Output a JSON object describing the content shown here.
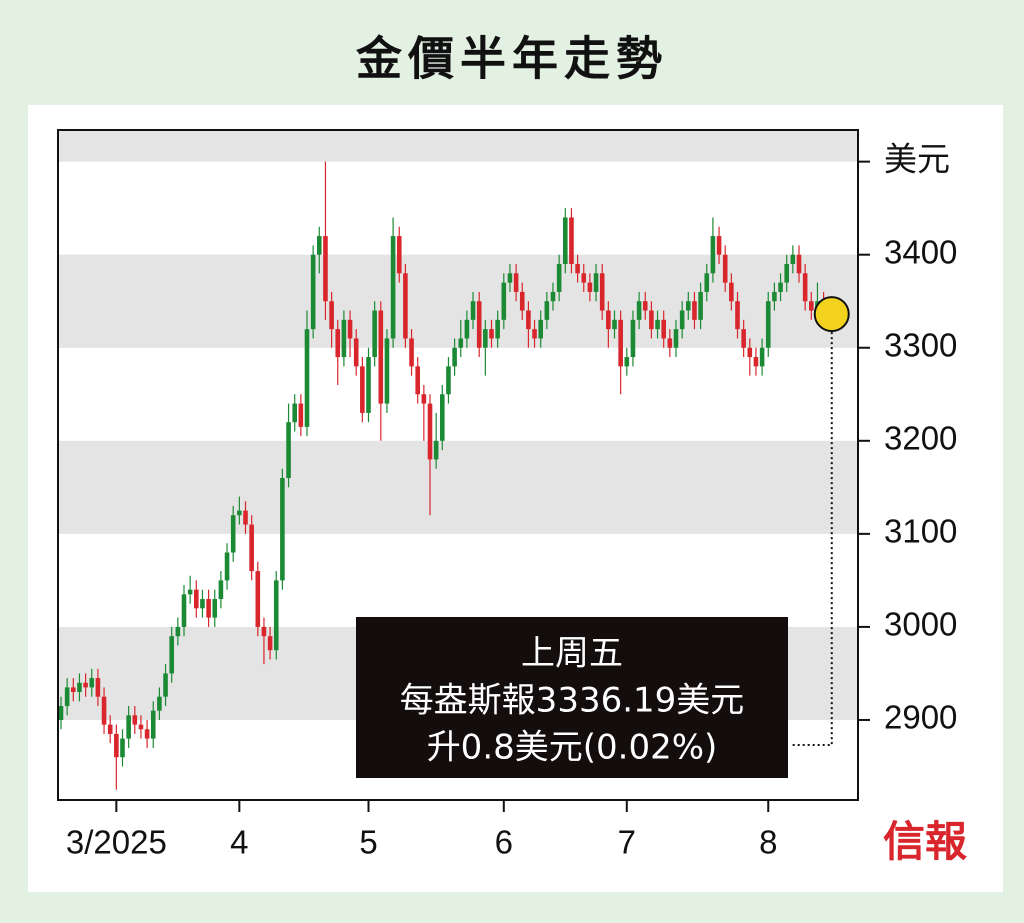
{
  "chart_data": {
    "type": "candlestick",
    "title": "金價半年走勢",
    "logo": "信報",
    "annotation": [
      "上周五",
      "每盎斯報3336.19美元",
      "升0.8美元(0.02%)"
    ],
    "up_color": "#1c8a34",
    "down_color": "#d8262c",
    "ylim": [
      2814,
      3534
    ],
    "yticks": [
      2900,
      3000,
      3100,
      3200,
      3300,
      3400,
      {
        "value": 3500,
        "label": "美元"
      }
    ],
    "grid": true,
    "categories": [
      null,
      null,
      null,
      null,
      null,
      null,
      null,
      null,
      null,
      "3/2025",
      null,
      null,
      null,
      null,
      null,
      null,
      null,
      null,
      null,
      null,
      null,
      null,
      null,
      null,
      null,
      null,
      null,
      null,
      null,
      "4",
      null,
      null,
      null,
      null,
      null,
      null,
      null,
      null,
      null,
      null,
      null,
      null,
      null,
      null,
      null,
      null,
      null,
      null,
      null,
      null,
      "5",
      null,
      null,
      null,
      null,
      null,
      null,
      null,
      null,
      null,
      null,
      null,
      null,
      null,
      null,
      null,
      null,
      null,
      null,
      null,
      null,
      null,
      "6",
      null,
      null,
      null,
      null,
      null,
      null,
      null,
      null,
      null,
      null,
      null,
      null,
      null,
      null,
      null,
      null,
      null,
      null,
      null,
      "7",
      null,
      null,
      null,
      null,
      null,
      null,
      null,
      null,
      null,
      null,
      null,
      null,
      null,
      null,
      null,
      null,
      null,
      null,
      null,
      null,
      null,
      null,
      "8",
      null,
      null,
      null,
      null,
      null,
      null,
      null,
      null,
      null,
      null
    ],
    "open": [
      2900,
      2915,
      2935,
      2930,
      2940,
      2935,
      2945,
      2925,
      2895,
      2885,
      2860,
      2880,
      2905,
      2895,
      2890,
      2880,
      2910,
      2925,
      2950,
      2990,
      3000,
      3035,
      3040,
      3020,
      3030,
      3010,
      3030,
      3050,
      3080,
      3120,
      3125,
      3110,
      3060,
      3000,
      2990,
      2975,
      3050,
      3160,
      3220,
      3240,
      3215,
      3320,
      3400,
      3420,
      3350,
      3320,
      3290,
      3330,
      3310,
      3280,
      3230,
      3290,
      3340,
      3240,
      3310,
      3420,
      3380,
      3310,
      3280,
      3250,
      3240,
      3180,
      3200,
      3250,
      3280,
      3300,
      3310,
      3330,
      3350,
      3300,
      3320,
      3310,
      3330,
      3370,
      3380,
      3360,
      3340,
      3320,
      3310,
      3330,
      3350,
      3360,
      3390,
      3440,
      3390,
      3380,
      3370,
      3360,
      3380,
      3340,
      3320,
      3330,
      3280,
      3290,
      3330,
      3350,
      3340,
      3320,
      3330,
      3310,
      3300,
      3320,
      3340,
      3350,
      3330,
      3360,
      3380,
      3420,
      3400,
      3370,
      3350,
      3320,
      3300,
      3290,
      3280,
      3300,
      3350,
      3360,
      3370,
      3390,
      3400,
      3380,
      3350,
      3340,
      3350,
      3340
    ],
    "high": [
      2925,
      2945,
      2945,
      2950,
      2950,
      2955,
      2955,
      2935,
      2905,
      2895,
      2890,
      2915,
      2915,
      2905,
      2900,
      2920,
      2935,
      2960,
      3000,
      3010,
      3045,
      3055,
      3050,
      3040,
      3040,
      3040,
      3060,
      3090,
      3130,
      3140,
      3135,
      3120,
      3070,
      3010,
      3000,
      3060,
      3170,
      3240,
      3250,
      3250,
      3340,
      3410,
      3430,
      3500,
      3360,
      3330,
      3340,
      3340,
      3320,
      3290,
      3300,
      3350,
      3350,
      3320,
      3440,
      3430,
      3390,
      3320,
      3290,
      3260,
      3250,
      3230,
      3260,
      3290,
      3310,
      3330,
      3340,
      3360,
      3360,
      3330,
      3330,
      3340,
      3380,
      3390,
      3390,
      3370,
      3350,
      3330,
      3340,
      3360,
      3370,
      3400,
      3450,
      3450,
      3400,
      3390,
      3380,
      3390,
      3390,
      3350,
      3340,
      3340,
      3300,
      3340,
      3360,
      3360,
      3350,
      3340,
      3340,
      3320,
      3330,
      3350,
      3360,
      3360,
      3370,
      3390,
      3440,
      3430,
      3410,
      3380,
      3360,
      3330,
      3310,
      3300,
      3310,
      3360,
      3370,
      3380,
      3400,
      3410,
      3410,
      3390,
      3360,
      3370,
      3360,
      3350
    ],
    "low": [
      2890,
      2905,
      2920,
      2920,
      2925,
      2925,
      2915,
      2885,
      2875,
      2825,
      2850,
      2870,
      2885,
      2880,
      2870,
      2870,
      2900,
      2915,
      2940,
      2980,
      2990,
      3025,
      3010,
      3010,
      3000,
      3000,
      3020,
      3040,
      3070,
      3110,
      3100,
      3050,
      2990,
      2960,
      2965,
      2965,
      3040,
      3150,
      3210,
      3205,
      3205,
      3310,
      3380,
      3330,
      3300,
      3260,
      3280,
      3290,
      3270,
      3220,
      3220,
      3280,
      3200,
      3230,
      3300,
      3370,
      3300,
      3270,
      3240,
      3200,
      3120,
      3170,
      3190,
      3240,
      3270,
      3290,
      3300,
      3320,
      3290,
      3270,
      3300,
      3300,
      3320,
      3360,
      3350,
      3330,
      3300,
      3300,
      3300,
      3320,
      3340,
      3350,
      3380,
      3380,
      3370,
      3360,
      3350,
      3350,
      3330,
      3300,
      3310,
      3250,
      3270,
      3280,
      3320,
      3330,
      3310,
      3310,
      3300,
      3290,
      3290,
      3310,
      3330,
      3320,
      3320,
      3350,
      3370,
      3390,
      3360,
      3340,
      3310,
      3290,
      3270,
      3270,
      3270,
      3290,
      3340,
      3350,
      3360,
      3380,
      3370,
      3340,
      3330,
      3330,
      3330,
      3325
    ],
    "close": [
      2915,
      2935,
      2930,
      2940,
      2935,
      2945,
      2925,
      2895,
      2885,
      2860,
      2880,
      2905,
      2895,
      2890,
      2880,
      2910,
      2925,
      2950,
      2990,
      3000,
      3035,
      3040,
      3020,
      3030,
      3010,
      3030,
      3050,
      3080,
      3120,
      3125,
      3110,
      3060,
      3000,
      2990,
      2975,
      3050,
      3160,
      3220,
      3240,
      3215,
      3320,
      3400,
      3420,
      3350,
      3320,
      3290,
      3330,
      3310,
      3280,
      3230,
      3290,
      3340,
      3240,
      3310,
      3420,
      3380,
      3310,
      3280,
      3250,
      3240,
      3180,
      3200,
      3250,
      3280,
      3300,
      3310,
      3330,
      3350,
      3300,
      3320,
      3310,
      3330,
      3370,
      3380,
      3360,
      3340,
      3320,
      3310,
      3330,
      3350,
      3360,
      3390,
      3440,
      3390,
      3380,
      3370,
      3360,
      3380,
      3340,
      3320,
      3330,
      3280,
      3290,
      3330,
      3350,
      3340,
      3320,
      3330,
      3310,
      3300,
      3320,
      3340,
      3350,
      3330,
      3360,
      3380,
      3420,
      3400,
      3370,
      3350,
      3320,
      3300,
      3290,
      3280,
      3300,
      3350,
      3360,
      3370,
      3390,
      3400,
      3380,
      3350,
      3340,
      3350,
      3340,
      3336.19
    ]
  }
}
